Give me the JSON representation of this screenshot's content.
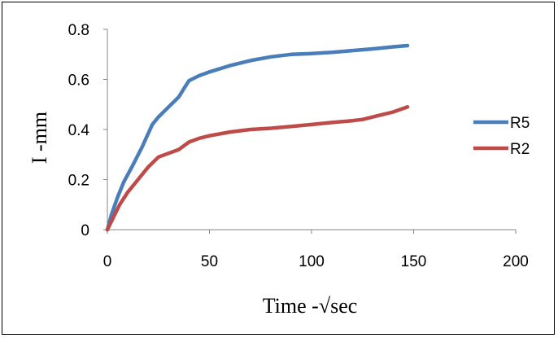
{
  "chart_data": {
    "type": "line",
    "title": "",
    "xlabel": "Time -√sec",
    "ylabel": "I -mm",
    "xlim": [
      0,
      200
    ],
    "ylim": [
      0,
      0.8
    ],
    "xticks": [
      0,
      50,
      100,
      150,
      200
    ],
    "yticks": [
      0,
      0.2,
      0.4,
      0.6,
      0.8
    ],
    "grid": false,
    "legend_position": "right",
    "series": [
      {
        "name": "R5",
        "color": "#4a7ebb",
        "x": [
          0,
          2,
          5,
          8,
          12,
          17,
          22,
          25,
          30,
          35,
          38,
          40,
          45,
          50,
          60,
          70,
          80,
          90,
          100,
          110,
          120,
          130,
          140,
          147
        ],
        "y": [
          0,
          0.06,
          0.13,
          0.19,
          0.25,
          0.33,
          0.42,
          0.45,
          0.49,
          0.53,
          0.57,
          0.595,
          0.615,
          0.63,
          0.655,
          0.675,
          0.69,
          0.7,
          0.703,
          0.708,
          0.715,
          0.722,
          0.73,
          0.735
        ]
      },
      {
        "name": "R2",
        "color": "#be4b48",
        "x": [
          0,
          3,
          6,
          10,
          15,
          20,
          25,
          30,
          35,
          40,
          45,
          50,
          60,
          70,
          80,
          90,
          100,
          110,
          120,
          125,
          130,
          140,
          147
        ],
        "y": [
          0,
          0.05,
          0.1,
          0.15,
          0.2,
          0.25,
          0.29,
          0.305,
          0.32,
          0.35,
          0.365,
          0.375,
          0.39,
          0.4,
          0.405,
          0.412,
          0.42,
          0.428,
          0.435,
          0.44,
          0.45,
          0.47,
          0.49
        ]
      }
    ]
  }
}
